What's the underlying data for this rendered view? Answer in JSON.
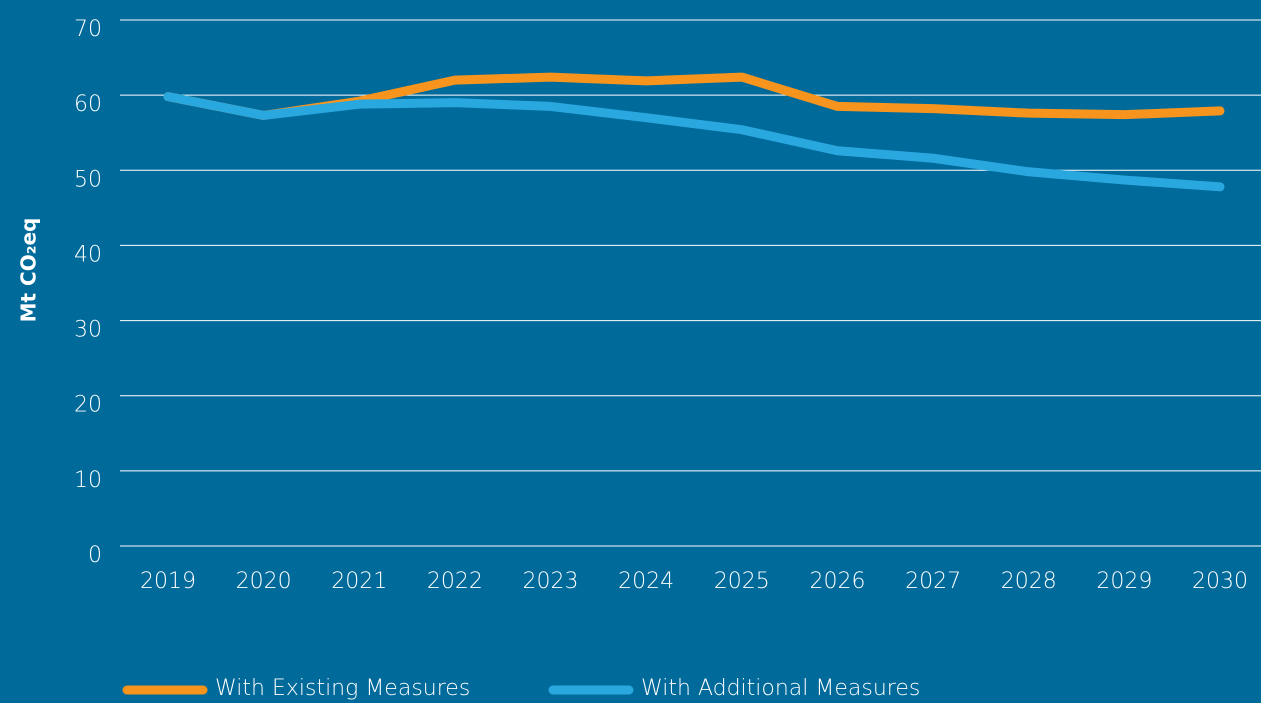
{
  "chart_data": {
    "type": "line",
    "y_label": "Mt CO₂eq",
    "categories": [
      2019,
      2020,
      2021,
      2022,
      2023,
      2024,
      2025,
      2026,
      2027,
      2028,
      2029,
      2030
    ],
    "series": [
      {
        "name": "With Existing Measures",
        "color": "#f7941d",
        "values": [
          59.8,
          57.3,
          59.2,
          62.0,
          62.4,
          61.9,
          62.4,
          58.5,
          58.2,
          57.6,
          57.4,
          57.9
        ]
      },
      {
        "name": "With Additional Measures",
        "color": "#29a8e0",
        "values": [
          59.8,
          57.3,
          58.8,
          59.0,
          58.5,
          57.0,
          55.4,
          52.6,
          51.6,
          49.8,
          48.7,
          47.8
        ]
      }
    ],
    "ylim": [
      0,
      70
    ],
    "yticks": [
      0,
      10,
      20,
      30,
      40,
      50,
      60,
      70
    ],
    "grid": true
  }
}
